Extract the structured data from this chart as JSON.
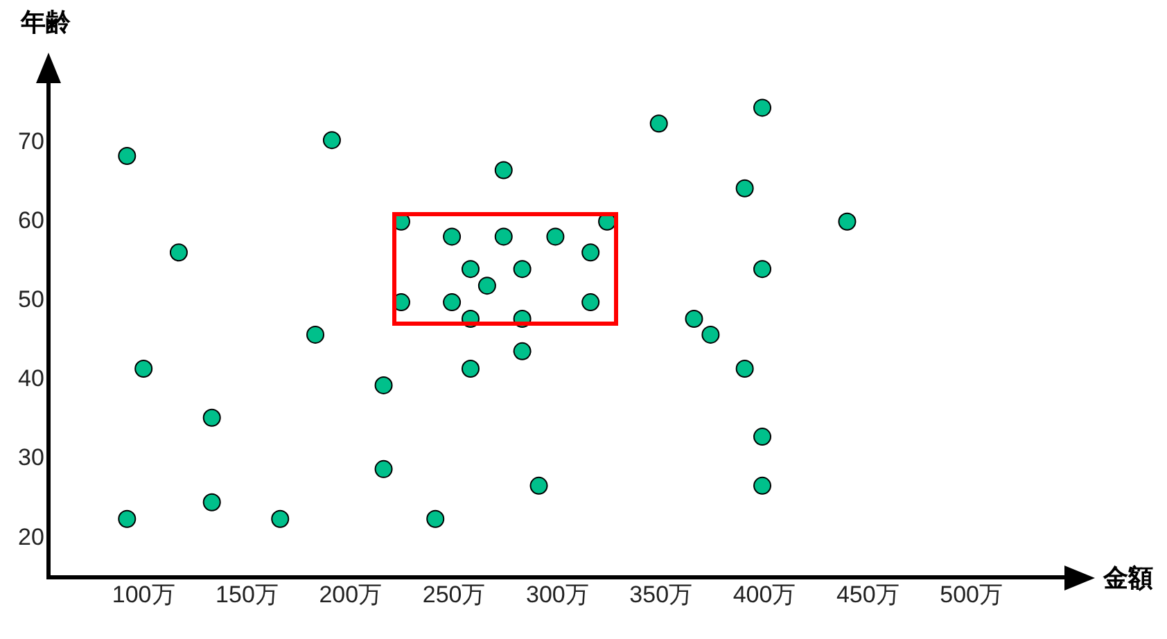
{
  "chart_data": {
    "type": "scatter",
    "xlabel": "金額",
    "ylabel": "年齢",
    "xlim": [
      54,
      545
    ],
    "ylim": [
      15,
      77.5
    ],
    "xticks": [
      {
        "value": 100,
        "label": "100万"
      },
      {
        "value": 150,
        "label": "150万"
      },
      {
        "value": 200,
        "label": "200万"
      },
      {
        "value": 250,
        "label": "250万"
      },
      {
        "value": 300,
        "label": "300万"
      },
      {
        "value": 350,
        "label": "350万"
      },
      {
        "value": 400,
        "label": "400万"
      },
      {
        "value": 450,
        "label": "450万"
      },
      {
        "value": 500,
        "label": "500万"
      }
    ],
    "yticks": [
      20,
      30,
      40,
      50,
      60,
      70
    ],
    "grid": false,
    "legend": false,
    "marker": "circle",
    "series": [
      {
        "color": "#00c08b",
        "x": [
          92,
          92,
          100,
          117,
          133,
          133,
          166,
          183,
          191,
          216,
          216,
          224.5,
          224.5,
          241,
          249,
          249,
          258,
          258,
          258,
          266,
          274,
          274,
          283,
          283,
          283,
          291,
          299,
          316,
          316,
          324,
          349,
          366,
          374,
          390.5,
          390.5,
          399,
          399,
          399,
          399,
          440
        ],
        "values": [
          68.3,
          22.4,
          41.4,
          56.1,
          35.2,
          24.5,
          22.4,
          45.7,
          70.3,
          39.3,
          28.7,
          60,
          49.8,
          22.4,
          58.1,
          49.8,
          54,
          47.7,
          41.4,
          51.9,
          66.5,
          58.1,
          54,
          47.7,
          43.6,
          26.6,
          58.1,
          56.1,
          49.8,
          60,
          72.4,
          47.7,
          45.7,
          64.2,
          41.4,
          74.4,
          54,
          32.8,
          26.6,
          60
        ]
      }
    ]
  }
}
